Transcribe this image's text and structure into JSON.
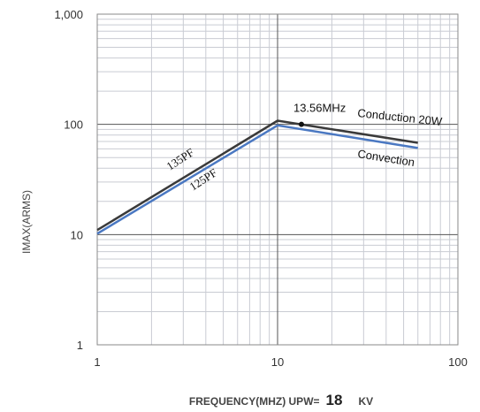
{
  "chart_data": {
    "type": "line",
    "x_scale": "log",
    "y_scale": "log",
    "xlim": [
      1,
      100
    ],
    "ylim": [
      1,
      1000
    ],
    "grid": true,
    "x_ticks": [
      "1",
      "10",
      "100"
    ],
    "y_ticks": [
      "1",
      "10",
      "100",
      "1,000"
    ],
    "ylabel": "IMAX(ARMS)",
    "xlabel_prefix": "FREQUENCY(MHZ)   UPW=",
    "xlabel_value": "18",
    "xlabel_unit": "KV",
    "series": [
      {
        "name": "Conduction 20W",
        "color": "#3a3a3a",
        "x": [
          1,
          10,
          60
        ],
        "y": [
          11,
          108,
          68
        ]
      },
      {
        "name": "Convection",
        "color": "#4a78c2",
        "x": [
          1,
          10,
          60
        ],
        "y": [
          10.2,
          98,
          61
        ]
      }
    ],
    "annotations": {
      "marker": {
        "label": "13.56MHz",
        "x": 13.56,
        "y": 100
      },
      "upper_line_label": "135PF",
      "lower_line_label": "125PF"
    }
  }
}
